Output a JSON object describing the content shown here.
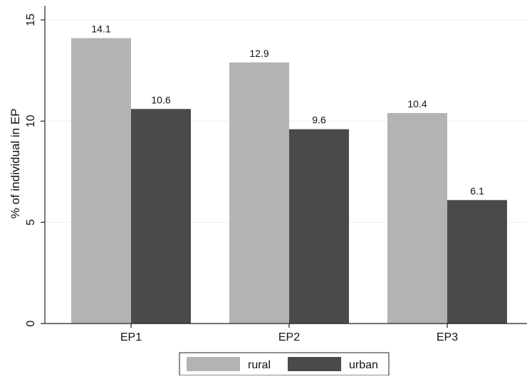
{
  "chart_data": {
    "type": "bar",
    "title": "",
    "xlabel": "",
    "ylabel": "% of individual in EP",
    "categories": [
      "EP1",
      "EP2",
      "EP3"
    ],
    "series": [
      {
        "name": "rural",
        "values": [
          14.1,
          12.9,
          10.4
        ],
        "color": "#b3b3b3"
      },
      {
        "name": "urban",
        "values": [
          10.6,
          9.6,
          6.1
        ],
        "color": "#4a4a4a"
      }
    ],
    "data_labels": [
      [
        "14.1",
        "12.9",
        "10.4"
      ],
      [
        "10.6",
        "9.6",
        "6.1"
      ]
    ],
    "yticks": [
      0,
      5,
      10,
      15
    ],
    "ytick_labels": [
      "0",
      "5",
      "10",
      "15"
    ],
    "ylim": [
      0,
      15
    ],
    "grid": true,
    "grid_color": "#ececec",
    "legend_placement": "bottom"
  }
}
